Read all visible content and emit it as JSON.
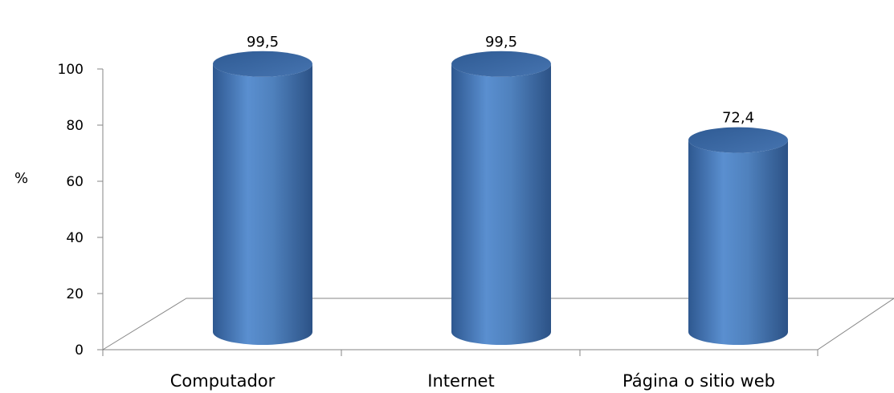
{
  "chart_data": {
    "type": "bar",
    "style": "3d-cylinder",
    "categories": [
      "Computador",
      "Internet",
      "Página o sitio web"
    ],
    "values": [
      99.5,
      99.5,
      72.4
    ],
    "value_labels": [
      "99,5",
      "99,5",
      "72,4"
    ],
    "ylabel": "%",
    "ylim": [
      0,
      100
    ],
    "yticks": [
      "0",
      "20",
      "40",
      "60",
      "80",
      "100"
    ],
    "grid": false,
    "legend": "none",
    "colors": {
      "bar_body": "#4f81bd",
      "bar_dark": "#2c5286",
      "bar_top": "#3b6aa6",
      "axis": "#868686"
    }
  }
}
